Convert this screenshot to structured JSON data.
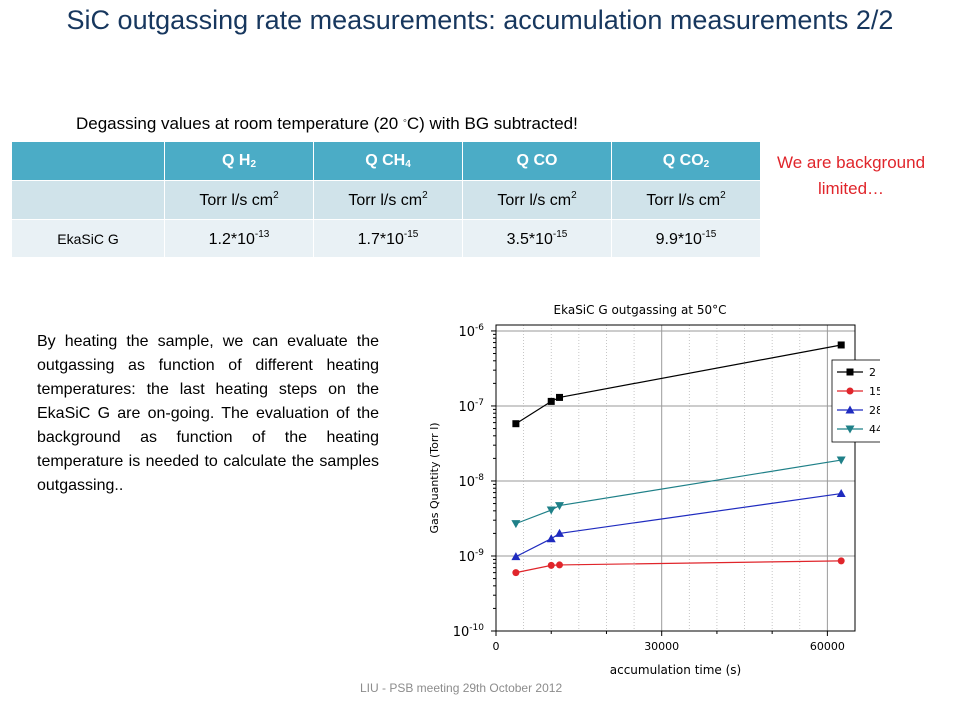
{
  "slide": {
    "title": "SiC outgassing rate measurements: accumulation measurements 2/2",
    "subtitle_before": "Degassing values at room temperature (20 ",
    "subtitle_degree": "◦",
    "subtitle_after": "C) with BG subtracted!",
    "note": "We are background limited…",
    "body_text": "By heating the sample, we can evaluate the outgassing as function of different heating temperatures: the last heating steps on the EkaSiC G are on-going. The evaluation of the background as function of the heating temperature is needed to calculate the samples outgassing..",
    "footer": "LIU - PSB meeting 29th October 2012"
  },
  "table": {
    "headers": [
      {
        "pre": "Q H",
        "sub": "2"
      },
      {
        "pre": "Q CH",
        "sub": "4"
      },
      {
        "pre": "Q CO",
        "sub": ""
      },
      {
        "pre": "Q CO",
        "sub": "2"
      }
    ],
    "unit": {
      "text": "Torr l/s cm",
      "sup": "2"
    },
    "row_label": "EkaSiC G",
    "values": [
      {
        "base": "1.2*10",
        "exp": "-13"
      },
      {
        "base": "1.7*10",
        "exp": "-15"
      },
      {
        "base": "3.5*10",
        "exp": "-15"
      },
      {
        "base": "9.9*10",
        "exp": "-15"
      }
    ]
  },
  "chart_data": {
    "type": "scatter",
    "title": "EkaSiC G outgassing at 50°C",
    "xlabel": "accumulation time (s)",
    "ylabel": "Gas Quantity (Torr l)",
    "xlim": [
      0,
      65000
    ],
    "ylim": [
      1e-10,
      1.2e-06
    ],
    "yscale": "log",
    "x_ticks": [
      "0",
      "30000",
      "60000"
    ],
    "y_ticks": [
      {
        "base": "10",
        "exp": "-10",
        "value": 1e-10
      },
      {
        "base": "10",
        "exp": "-9",
        "value": 1e-09
      },
      {
        "base": "10",
        "exp": "-8",
        "value": 1e-08
      },
      {
        "base": "10",
        "exp": "-7",
        "value": 1e-07
      },
      {
        "base": "10",
        "exp": "-6",
        "value": 1e-06
      }
    ],
    "grid": true,
    "legend_position": "top-right",
    "series": [
      {
        "name": "2",
        "color": "#000000",
        "marker": "square",
        "x": [
          3600,
          10000,
          11500,
          62500
        ],
        "y": [
          5.8e-08,
          1.15e-07,
          1.3e-07,
          6.5e-07
        ]
      },
      {
        "name": "15",
        "color": "#e0252b",
        "marker": "circle",
        "x": [
          3600,
          10000,
          11500,
          62500
        ],
        "y": [
          6e-10,
          7.5e-10,
          7.6e-10,
          8.6e-10
        ]
      },
      {
        "name": "28",
        "color": "#1f2bbf",
        "marker": "triangle-up",
        "x": [
          3600,
          10000,
          11500,
          62500
        ],
        "y": [
          9.8e-10,
          1.7e-09,
          2e-09,
          6.8e-09
        ]
      },
      {
        "name": "44",
        "color": "#1f8088",
        "marker": "triangle-down",
        "x": [
          3600,
          10000,
          11500,
          62500
        ],
        "y": [
          2.7e-09,
          4.1e-09,
          4.7e-09,
          1.9e-08
        ]
      }
    ]
  }
}
